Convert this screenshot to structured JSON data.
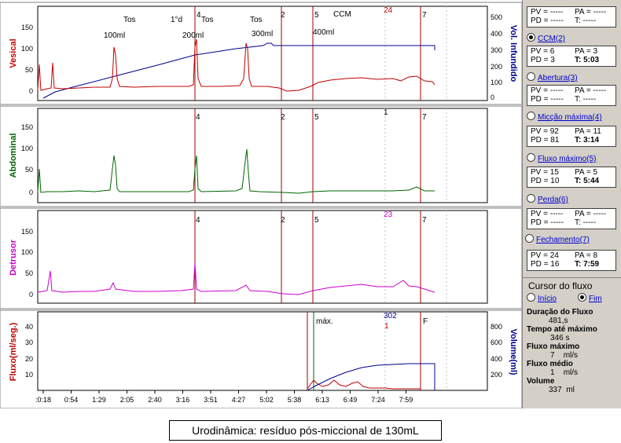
{
  "panels": [
    {
      "id": "vesical",
      "label": "Vesical",
      "color": "#c00000",
      "yticks": [
        "150",
        "100",
        "50",
        "0"
      ],
      "yticks_right": [
        "500",
        "400",
        "300",
        "200",
        "100",
        "0"
      ],
      "right_label": "Vol. Infundido"
    },
    {
      "id": "abdominal",
      "label": "Abdominal",
      "color": "#006400",
      "yticks": [
        "150",
        "100",
        "50",
        "0"
      ]
    },
    {
      "id": "detrusor",
      "label": "Detrusor",
      "color": "#cc00cc",
      "yticks": [
        "150",
        "100",
        "50",
        "0"
      ]
    },
    {
      "id": "fluxo",
      "label": "Fluxo(ml/seg.)",
      "color": "#c00000",
      "yticks": [
        "40",
        "30",
        "20",
        "10"
      ],
      "yticks_right": [
        "800",
        "600",
        "400",
        "200"
      ],
      "right_label": "Volume(ml)"
    }
  ],
  "time_ticks": [
    ":0:18",
    "0:54",
    "1:29",
    "2:05",
    "2:40",
    "3:16",
    "3:51",
    "4:27",
    "5:02",
    "5:38",
    "6:13",
    "6:49",
    "7:24",
    "7:59"
  ],
  "events_vesical": [
    {
      "text": "Tos",
      "x": 157,
      "y": 28
    },
    {
      "text": "1°d",
      "x": 217,
      "y": 28
    },
    {
      "text": "Tos",
      "x": 256,
      "y": 28
    },
    {
      "text": "Tos",
      "x": 318,
      "y": 28
    },
    {
      "text": "CCM",
      "x": 424,
      "y": 21
    },
    {
      "text": "100ml",
      "x": 132,
      "y": 48
    },
    {
      "text": "200ml",
      "x": 232,
      "y": 48
    },
    {
      "text": "300ml",
      "x": 320,
      "y": 46
    },
    {
      "text": "400ml",
      "x": 398,
      "y": 44
    }
  ],
  "markers": {
    "m4": "4",
    "m2": "2",
    "m5": "5",
    "m7": "7",
    "m24": "24",
    "m1": "1",
    "m23": "23",
    "max": "máx.",
    "m302": "302",
    "m1b": "1",
    "f": "F"
  },
  "sidebar": {
    "top": {
      "pv": "PV = -----",
      "pa": "PA = -----",
      "pd": "PD = -----",
      "t": "T: -----"
    },
    "ccm": {
      "label": "CCM(2)",
      "pv": "PV = 6",
      "pa": "PA = 3",
      "pd": "PD = 3",
      "t": "T: 5:03"
    },
    "abertura": {
      "label": "Abertura(3)",
      "pv": "PV = -----",
      "pa": "PA = -----",
      "pd": "PD = -----",
      "t": "T: -----"
    },
    "miccao": {
      "label": "Micção máxima(4)",
      "pv": "PV = 92",
      "pa": "PA = 11",
      "pd": "PD = 81",
      "t": "T: 3:14"
    },
    "fluxo": {
      "label": "Fluxo máximo(5)",
      "pv": "PV = 15",
      "pa": "PA = 5",
      "pd": "PD = 10",
      "t": "T: 5:44"
    },
    "perda": {
      "label": "Perda(6)",
      "pv": "PV = -----",
      "pa": "PA = -----",
      "pd": "PD = -----",
      "t": "T: -----"
    },
    "fechamento": {
      "label": "Fechamento(7)",
      "pv": "PV = 24",
      "pa": "PA = 8",
      "pd": "PD = 16",
      "t": "T: 7:59"
    },
    "cursor_title": "Cursor do fluxo",
    "inicio": "Início",
    "fim": "Fim",
    "duracao_label": "Duração do Fluxo",
    "duracao_val": "481",
    "duracao_unit": "s",
    "tempo_label": "Tempo até máximo",
    "tempo_val": "346",
    "tempo_unit": "s",
    "fluxomax_label": "Fluxo máximo",
    "fluxomax_val": "7",
    "fluxomax_unit": "ml/s",
    "fluxomed_label": "Fluxo médio",
    "fluxomed_val": "1",
    "fluxomed_unit": "ml/s",
    "volume_label": "Volume",
    "volume_val": "337",
    "volume_unit": "ml"
  },
  "caption": "Urodinâmica: resíduo pós-miccional de 130mL"
}
